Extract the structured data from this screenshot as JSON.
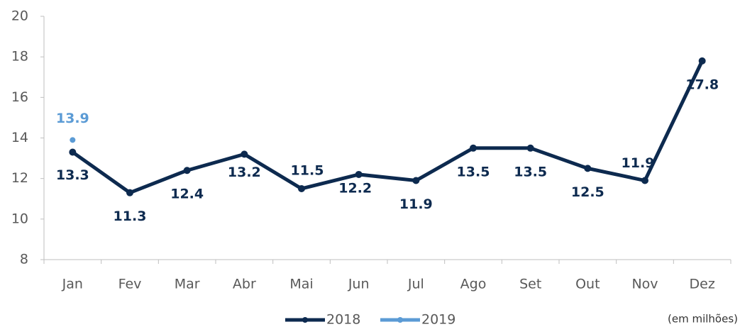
{
  "chart_data": {
    "type": "line",
    "categories": [
      "Jan",
      "Fev",
      "Mar",
      "Abr",
      "Mai",
      "Jun",
      "Jul",
      "Ago",
      "Set",
      "Out",
      "Nov",
      "Dez"
    ],
    "series": [
      {
        "name": "2018",
        "color": "#0d2a4f",
        "values": [
          13.3,
          11.3,
          12.4,
          13.2,
          11.5,
          12.2,
          11.9,
          13.5,
          13.5,
          12.5,
          11.9,
          17.8
        ]
      },
      {
        "name": "2019",
        "color": "#5b9bd5",
        "values": [
          13.9,
          null,
          null,
          null,
          null,
          null,
          null,
          null,
          null,
          null,
          null,
          null
        ]
      }
    ],
    "ylim": [
      8,
      20
    ],
    "yticks": [
      8,
      10,
      12,
      14,
      16,
      18,
      20
    ],
    "grid": false,
    "legend": "bottom",
    "note": "(em milhões)"
  }
}
